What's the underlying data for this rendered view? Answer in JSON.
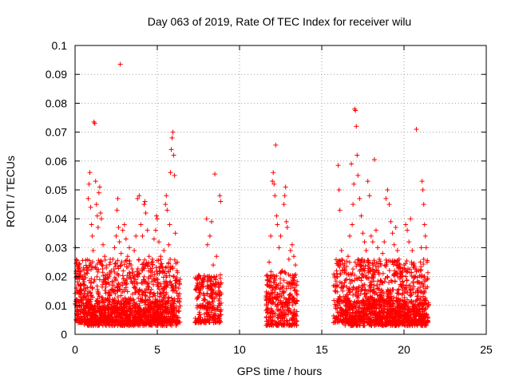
{
  "chart_data": {
    "type": "scatter",
    "title": "Day 063 of 2019, Rate Of TEC Index for receiver wilu",
    "xlabel": "GPS time / hours",
    "ylabel": "ROTI / TECUs",
    "xlim": [
      0,
      25
    ],
    "ylim": [
      0,
      0.1
    ],
    "x_ticks": [
      0,
      5,
      10,
      15,
      20,
      25
    ],
    "y_ticks": [
      0,
      0.01,
      0.02,
      0.03,
      0.04,
      0.05,
      0.06,
      0.07,
      0.08,
      0.09,
      0.1
    ],
    "x_tick_labels": [
      "0",
      "5",
      "10",
      "15",
      "20",
      "25"
    ],
    "y_tick_labels": [
      "0",
      "0.01",
      "0.02",
      "0.03",
      "0.04",
      "0.05",
      "0.06",
      "0.07",
      "0.08",
      "0.09",
      "0.1"
    ],
    "grid": true,
    "marker": "+",
    "color": "#ff0000",
    "series": [
      {
        "points": [
          [
            0.02,
            0.03
          ],
          [
            0.1,
            0.025
          ],
          [
            0.2,
            0.02
          ],
          [
            0.3,
            0.017
          ],
          [
            0.35,
            0.013
          ],
          [
            0.5,
            0.019
          ],
          [
            0.6,
            0.015
          ],
          [
            0.7,
            0.023
          ],
          [
            0.8,
            0.047
          ],
          [
            0.85,
            0.052
          ],
          [
            0.9,
            0.056
          ],
          [
            0.95,
            0.044
          ],
          [
            1.0,
            0.038
          ],
          [
            1.05,
            0.034
          ],
          [
            1.1,
            0.029
          ],
          [
            1.15,
            0.0735
          ],
          [
            1.2,
            0.073
          ],
          [
            1.25,
            0.053
          ],
          [
            1.3,
            0.045
          ],
          [
            1.35,
            0.041
          ],
          [
            1.4,
            0.037
          ],
          [
            1.45,
            0.049
          ],
          [
            1.5,
            0.051
          ],
          [
            1.55,
            0.042
          ],
          [
            1.6,
            0.04
          ],
          [
            1.7,
            0.031
          ],
          [
            1.8,
            0.027
          ],
          [
            1.9,
            0.023
          ],
          [
            2.0,
            0.018
          ],
          [
            2.1,
            0.014
          ],
          [
            2.2,
            0.022
          ],
          [
            2.3,
            0.026
          ],
          [
            2.4,
            0.03
          ],
          [
            2.5,
            0.034
          ],
          [
            2.55,
            0.043
          ],
          [
            2.6,
            0.047
          ],
          [
            2.65,
            0.037
          ],
          [
            2.7,
            0.032
          ],
          [
            2.75,
            0.0935
          ],
          [
            2.8,
            0.028
          ],
          [
            2.9,
            0.036
          ],
          [
            3.0,
            0.038
          ],
          [
            3.1,
            0.033
          ],
          [
            3.2,
            0.027
          ],
          [
            3.3,
            0.03
          ],
          [
            3.4,
            0.024
          ],
          [
            3.5,
            0.021
          ],
          [
            3.6,
            0.029
          ],
          [
            3.7,
            0.034
          ],
          [
            3.8,
            0.047
          ],
          [
            3.9,
            0.048
          ],
          [
            4.0,
            0.038
          ],
          [
            4.1,
            0.034
          ],
          [
            4.2,
            0.045
          ],
          [
            4.25,
            0.046
          ],
          [
            4.3,
            0.042
          ],
          [
            4.4,
            0.036
          ],
          [
            4.5,
            0.027
          ],
          [
            4.6,
            0.022
          ],
          [
            4.7,
            0.026
          ],
          [
            4.8,
            0.033
          ],
          [
            4.9,
            0.036
          ],
          [
            4.95,
            0.041
          ],
          [
            5.0,
            0.04
          ],
          [
            5.1,
            0.032
          ],
          [
            5.2,
            0.027
          ],
          [
            5.3,
            0.023
          ],
          [
            5.4,
            0.029
          ],
          [
            5.5,
            0.045
          ],
          [
            5.55,
            0.048
          ],
          [
            5.6,
            0.043
          ],
          [
            5.7,
            0.031
          ],
          [
            5.75,
            0.038
          ],
          [
            5.8,
            0.056
          ],
          [
            5.85,
            0.064
          ],
          [
            5.9,
            0.068
          ],
          [
            5.95,
            0.07
          ],
          [
            6.0,
            0.062
          ],
          [
            6.05,
            0.055
          ],
          [
            6.1,
            0.035
          ],
          [
            6.2,
            0.022
          ],
          [
            6.3,
            0.016
          ],
          [
            7.4,
            0.016
          ],
          [
            7.5,
            0.013
          ],
          [
            7.6,
            0.01
          ],
          [
            7.7,
            0.018
          ],
          [
            7.8,
            0.014
          ],
          [
            7.9,
            0.012
          ],
          [
            8.0,
            0.04
          ],
          [
            8.05,
            0.031
          ],
          [
            8.1,
            0.02
          ],
          [
            8.2,
            0.034
          ],
          [
            8.3,
            0.039
          ],
          [
            8.4,
            0.024
          ],
          [
            8.5,
            0.0555
          ],
          [
            8.6,
            0.027
          ],
          [
            8.7,
            0.018
          ],
          [
            8.8,
            0.048
          ],
          [
            8.85,
            0.046
          ],
          [
            8.9,
            0.014
          ],
          [
            11.7,
            0.017
          ],
          [
            11.8,
            0.025
          ],
          [
            11.9,
            0.034
          ],
          [
            12.0,
            0.053
          ],
          [
            12.05,
            0.056
          ],
          [
            12.1,
            0.052
          ],
          [
            12.15,
            0.048
          ],
          [
            12.2,
            0.0655
          ],
          [
            12.25,
            0.041
          ],
          [
            12.3,
            0.038
          ],
          [
            12.4,
            0.03
          ],
          [
            12.5,
            0.034
          ],
          [
            12.6,
            0.022
          ],
          [
            12.7,
            0.045
          ],
          [
            12.75,
            0.048
          ],
          [
            12.8,
            0.051
          ],
          [
            12.85,
            0.039
          ],
          [
            12.9,
            0.037
          ],
          [
            13.0,
            0.026
          ],
          [
            13.1,
            0.029
          ],
          [
            13.2,
            0.031
          ],
          [
            13.3,
            0.027
          ],
          [
            13.4,
            0.024
          ],
          [
            15.8,
            0.017
          ],
          [
            15.9,
            0.022
          ],
          [
            16.0,
            0.0585
          ],
          [
            16.05,
            0.05
          ],
          [
            16.1,
            0.043
          ],
          [
            16.2,
            0.029
          ],
          [
            16.3,
            0.024
          ],
          [
            16.5,
            0.021
          ],
          [
            16.6,
            0.027
          ],
          [
            16.7,
            0.034
          ],
          [
            16.8,
            0.059
          ],
          [
            16.85,
            0.038
          ],
          [
            16.9,
            0.045
          ],
          [
            16.95,
            0.052
          ],
          [
            17.0,
            0.078
          ],
          [
            17.05,
            0.0775
          ],
          [
            17.1,
            0.072
          ],
          [
            17.15,
            0.062
          ],
          [
            17.2,
            0.055
          ],
          [
            17.3,
            0.047
          ],
          [
            17.4,
            0.041
          ],
          [
            17.5,
            0.035
          ],
          [
            17.6,
            0.032
          ],
          [
            17.7,
            0.029
          ],
          [
            17.8,
            0.053
          ],
          [
            17.9,
            0.048
          ],
          [
            18.0,
            0.034
          ],
          [
            18.1,
            0.032
          ],
          [
            18.2,
            0.0605
          ],
          [
            18.3,
            0.036
          ],
          [
            18.4,
            0.03
          ],
          [
            18.5,
            0.026
          ],
          [
            18.6,
            0.024
          ],
          [
            18.7,
            0.028
          ],
          [
            18.8,
            0.032
          ],
          [
            18.9,
            0.047
          ],
          [
            19.0,
            0.05
          ],
          [
            19.1,
            0.045
          ],
          [
            19.2,
            0.039
          ],
          [
            19.3,
            0.035
          ],
          [
            19.4,
            0.031
          ],
          [
            19.5,
            0.037
          ],
          [
            19.6,
            0.029
          ],
          [
            19.7,
            0.026
          ],
          [
            19.8,
            0.021
          ],
          [
            19.9,
            0.018
          ],
          [
            20.0,
            0.024
          ],
          [
            20.1,
            0.038
          ],
          [
            20.2,
            0.036
          ],
          [
            20.3,
            0.032
          ],
          [
            20.4,
            0.04
          ],
          [
            20.5,
            0.029
          ],
          [
            20.6,
            0.024
          ],
          [
            20.7,
            0.02
          ],
          [
            20.75,
            0.071
          ],
          [
            20.8,
            0.018
          ],
          [
            21.0,
            0.025
          ],
          [
            21.05,
            0.03
          ],
          [
            21.1,
            0.053
          ],
          [
            21.15,
            0.05
          ],
          [
            21.2,
            0.045
          ],
          [
            21.25,
            0.038
          ],
          [
            21.3,
            0.034
          ],
          [
            21.35,
            0.03
          ],
          [
            21.4,
            0.025
          ]
        ]
      }
    ],
    "clusters": [
      {
        "x": [
          0.0,
          6.4
        ],
        "y": [
          0.004,
          0.026
        ],
        "n": 1100
      },
      {
        "x": [
          0.5,
          6.2
        ],
        "y": [
          0.003,
          0.012
        ],
        "n": 500
      },
      {
        "x": [
          7.3,
          8.9
        ],
        "y": [
          0.004,
          0.021
        ],
        "n": 260
      },
      {
        "x": [
          11.6,
          13.5
        ],
        "y": [
          0.003,
          0.022
        ],
        "n": 340
      },
      {
        "x": [
          15.7,
          21.5
        ],
        "y": [
          0.004,
          0.026
        ],
        "n": 1000
      },
      {
        "x": [
          16.4,
          21.4
        ],
        "y": [
          0.003,
          0.012
        ],
        "n": 450
      }
    ]
  }
}
